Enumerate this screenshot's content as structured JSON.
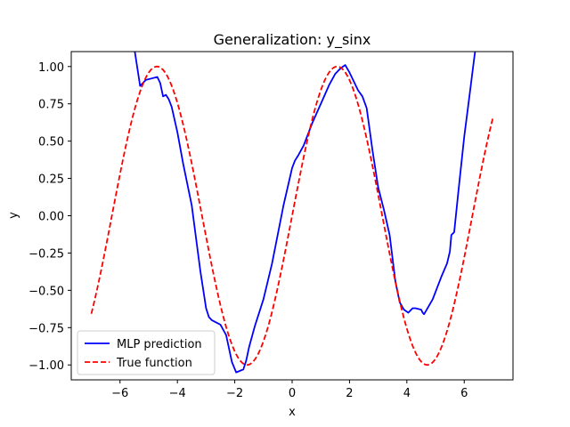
{
  "chart_data": {
    "type": "line",
    "title": "Generalization: y_sinx",
    "xlabel": "x",
    "ylabel": "y",
    "xlim": [
      -7.7,
      7.7
    ],
    "ylim": [
      -1.1,
      1.1
    ],
    "xticks": [
      -6,
      -4,
      -2,
      0,
      2,
      4,
      6
    ],
    "yticks": [
      -1.0,
      -0.75,
      -0.5,
      -0.25,
      0.0,
      0.25,
      0.5,
      0.75,
      1.0
    ],
    "xtick_labels": [
      "−6",
      "−4",
      "−2",
      "0",
      "2",
      "4",
      "6"
    ],
    "ytick_labels": [
      "−1.00",
      "−0.75",
      "−0.50",
      "−0.25",
      "0.00",
      "0.25",
      "0.50",
      "0.75",
      "1.00"
    ],
    "grid": false,
    "legend": "lower-left",
    "series": [
      {
        "name": "MLP prediction",
        "color": "#0000ff",
        "style": "solid",
        "x": [
          -5.6,
          -5.5,
          -5.3,
          -5.1,
          -4.9,
          -4.7,
          -4.6,
          -4.5,
          -4.4,
          -4.3,
          -4.2,
          -4.0,
          -3.8,
          -3.5,
          -3.2,
          -3.0,
          -2.9,
          -2.8,
          -2.5,
          -2.3,
          -2.1,
          -1.95,
          -1.7,
          -1.6,
          -1.5,
          -1.3,
          -1.0,
          -0.7,
          -0.3,
          0.0,
          0.1,
          0.2,
          0.4,
          0.7,
          1.0,
          1.3,
          1.5,
          1.7,
          1.85,
          2.0,
          2.2,
          2.3,
          2.45,
          2.6,
          2.8,
          3.0,
          3.2,
          3.4,
          3.6,
          3.75,
          3.9,
          4.05,
          4.2,
          4.3,
          4.5,
          4.55,
          4.6,
          4.9,
          5.2,
          5.4,
          5.5,
          5.55,
          5.6,
          5.65,
          5.8,
          6.0,
          6.2,
          6.35,
          6.45
        ],
        "y": [
          1.22,
          1.12,
          0.87,
          0.91,
          0.92,
          0.93,
          0.89,
          0.8,
          0.81,
          0.78,
          0.73,
          0.56,
          0.35,
          0.07,
          -0.37,
          -0.62,
          -0.68,
          -0.7,
          -0.73,
          -0.8,
          -0.98,
          -1.05,
          -1.03,
          -0.97,
          -0.88,
          -0.74,
          -0.56,
          -0.32,
          0.07,
          0.32,
          0.37,
          0.4,
          0.47,
          0.62,
          0.75,
          0.88,
          0.95,
          0.99,
          1.01,
          0.96,
          0.88,
          0.84,
          0.8,
          0.72,
          0.44,
          0.19,
          0.04,
          -0.13,
          -0.44,
          -0.58,
          -0.63,
          -0.65,
          -0.62,
          -0.62,
          -0.63,
          -0.65,
          -0.66,
          -0.56,
          -0.41,
          -0.32,
          -0.24,
          -0.13,
          -0.12,
          -0.11,
          0.17,
          0.53,
          0.83,
          1.06,
          1.2
        ]
      },
      {
        "name": "True function",
        "color": "#ff0000",
        "style": "dashed",
        "fn": "sin",
        "xrange": [
          -7.0,
          7.0
        ]
      }
    ]
  }
}
